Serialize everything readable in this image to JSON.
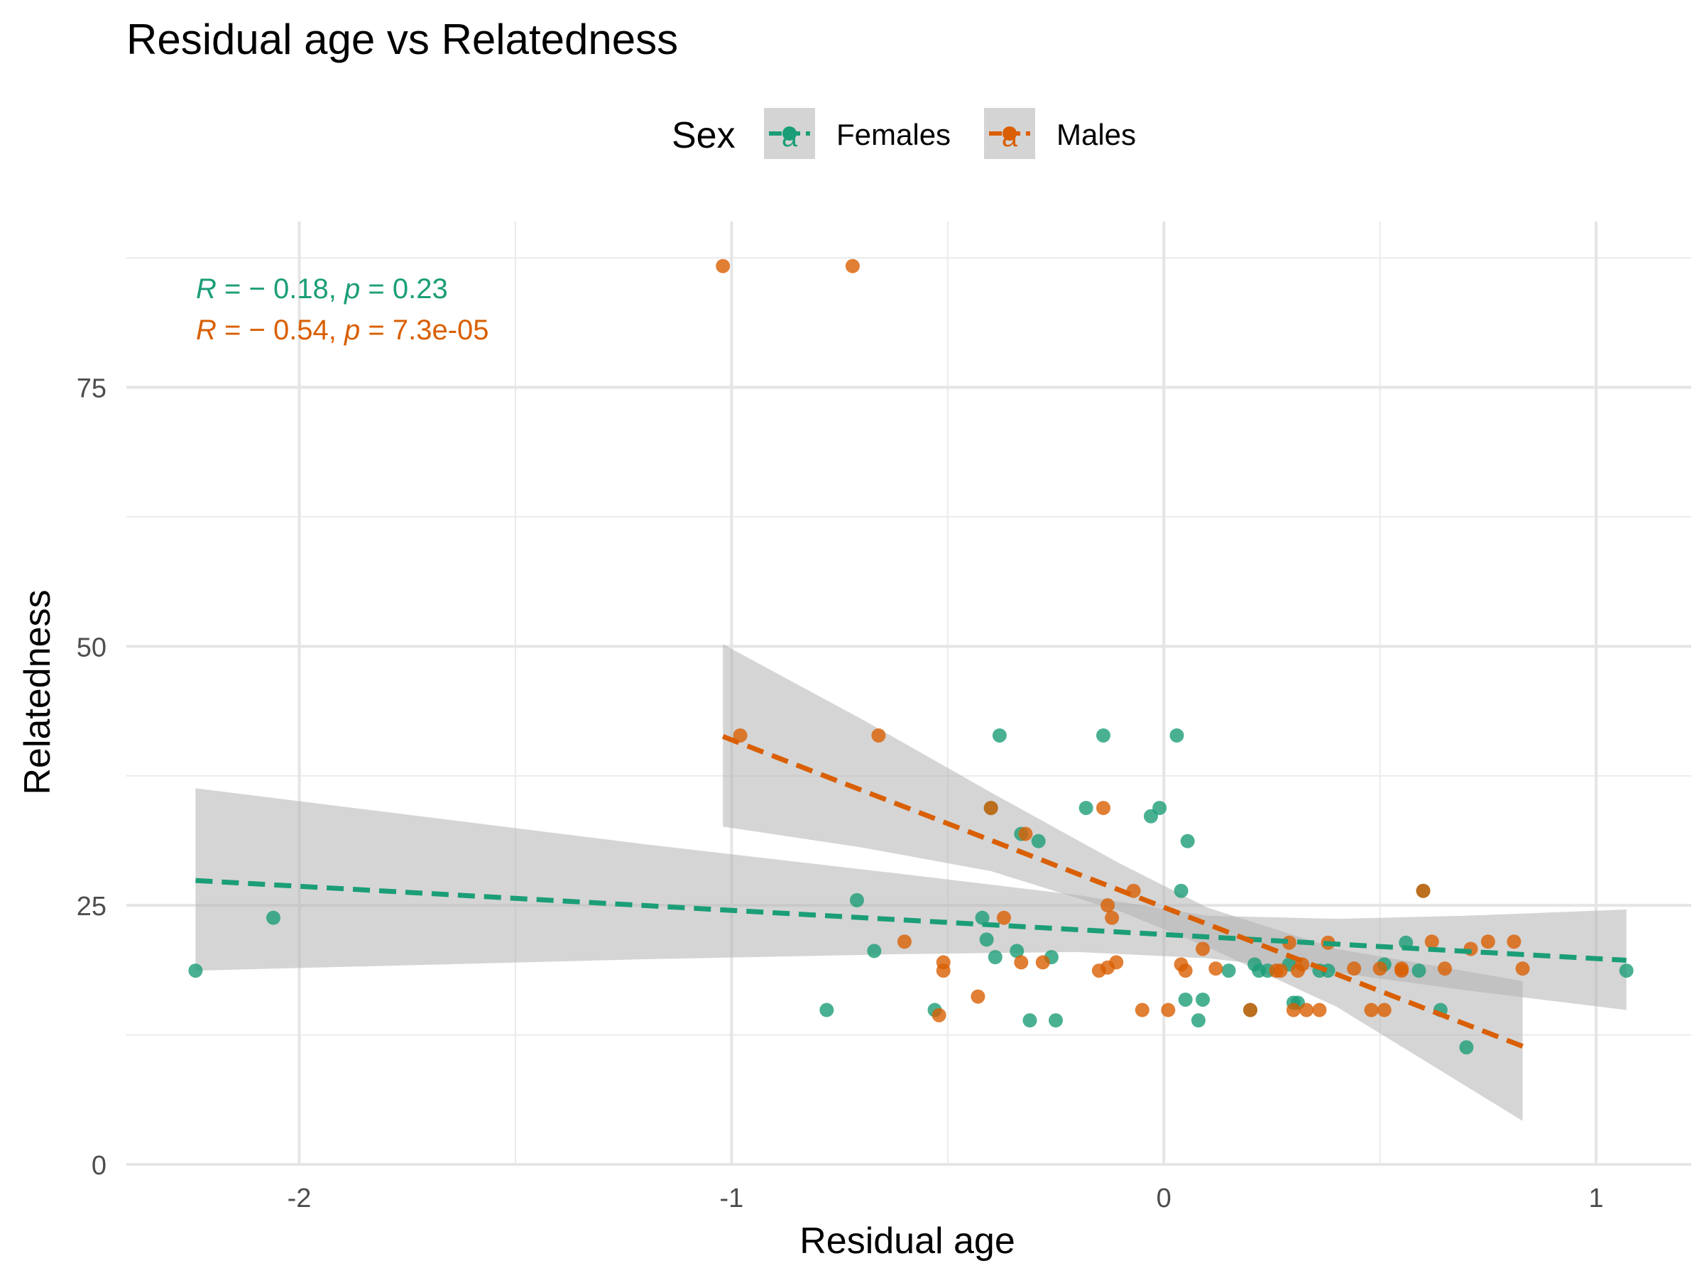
{
  "chart_data": {
    "type": "scatter",
    "title": "Residual age vs Relatedness",
    "xlabel": "Residual age",
    "ylabel": "Relatedness",
    "xlim": [
      -2.4,
      1.22
    ],
    "ylim": [
      0,
      91
    ],
    "x_ticks": [
      -2,
      -1,
      0,
      1
    ],
    "x_tick_labels": [
      "-2",
      "-1",
      "0",
      "1"
    ],
    "y_ticks": [
      0,
      25,
      50,
      75
    ],
    "y_tick_labels": [
      "0",
      "25",
      "50",
      "75"
    ],
    "grid": true,
    "legend": {
      "title": "Sex",
      "position": "top",
      "key_glyph": "a",
      "band_color": "#d4d4d4"
    },
    "colors": {
      "Females": "#1b9e77",
      "Males": "#d95f02",
      "ribbon": "#b3b3b3"
    },
    "annotations": [
      {
        "series": "Females",
        "r_label": "R",
        "r_value": " = − 0.18, ",
        "p_label": "p",
        "p_value": " = 0.23"
      },
      {
        "series": "Males",
        "r_label": "R",
        "r_value": " = − 0.54, ",
        "p_label": "p",
        "p_value": " = 7.3e-05"
      }
    ],
    "series": [
      {
        "name": "Females",
        "color": "#1b9e77",
        "points": [
          [
            -2.24,
            18.7
          ],
          [
            -2.06,
            23.8
          ],
          [
            -0.78,
            14.9
          ],
          [
            -0.71,
            25.5
          ],
          [
            -0.67,
            20.6
          ],
          [
            -0.53,
            14.9
          ],
          [
            -0.42,
            23.8
          ],
          [
            -0.41,
            21.7
          ],
          [
            -0.4,
            34.4
          ],
          [
            -0.39,
            20.0
          ],
          [
            -0.38,
            41.4
          ],
          [
            -0.34,
            20.6
          ],
          [
            -0.33,
            31.9
          ],
          [
            -0.31,
            13.9
          ],
          [
            -0.29,
            31.2
          ],
          [
            -0.26,
            20.0
          ],
          [
            -0.25,
            13.9
          ],
          [
            -0.18,
            34.4
          ],
          [
            -0.14,
            41.4
          ],
          [
            -0.03,
            33.6
          ],
          [
            -0.01,
            34.4
          ],
          [
            0.03,
            41.4
          ],
          [
            0.04,
            26.4
          ],
          [
            0.05,
            15.9
          ],
          [
            0.055,
            31.2
          ],
          [
            0.08,
            13.9
          ],
          [
            0.09,
            15.9
          ],
          [
            0.15,
            18.7
          ],
          [
            0.2,
            14.9
          ],
          [
            0.21,
            19.3
          ],
          [
            0.22,
            18.7
          ],
          [
            0.24,
            18.7
          ],
          [
            0.29,
            19.3
          ],
          [
            0.3,
            15.6
          ],
          [
            0.31,
            15.6
          ],
          [
            0.36,
            18.7
          ],
          [
            0.38,
            18.7
          ],
          [
            0.51,
            19.3
          ],
          [
            0.56,
            21.4
          ],
          [
            0.59,
            18.7
          ],
          [
            0.6,
            26.4
          ],
          [
            0.64,
            14.9
          ],
          [
            0.7,
            11.3
          ],
          [
            1.07,
            18.7
          ]
        ],
        "fit": {
          "x_start": -2.24,
          "y_start": 27.4,
          "x_end": 1.07,
          "y_end": 19.7
        },
        "ribbon_upper": [
          [
            -2.24,
            36.3
          ],
          [
            -1.2,
            30.9
          ],
          [
            -0.6,
            28.0
          ],
          [
            -0.2,
            26.0
          ],
          [
            0.1,
            24.0
          ],
          [
            0.4,
            23.7
          ],
          [
            0.7,
            24.0
          ],
          [
            1.07,
            24.6
          ]
        ],
        "ribbon_lower": [
          [
            -2.24,
            18.7
          ],
          [
            -1.2,
            19.8
          ],
          [
            -0.6,
            20.3
          ],
          [
            -0.2,
            20.5
          ],
          [
            0.1,
            19.9
          ],
          [
            0.4,
            18.5
          ],
          [
            0.7,
            16.8
          ],
          [
            1.07,
            14.9
          ]
        ]
      },
      {
        "name": "Males",
        "color": "#d95f02",
        "points": [
          [
            -1.02,
            86.7
          ],
          [
            -0.72,
            86.7
          ],
          [
            -0.98,
            41.4
          ],
          [
            -0.66,
            41.4
          ],
          [
            -0.6,
            21.5
          ],
          [
            -0.52,
            14.4
          ],
          [
            -0.51,
            19.5
          ],
          [
            -0.51,
            18.7
          ],
          [
            -0.43,
            16.2
          ],
          [
            -0.4,
            34.4
          ],
          [
            -0.37,
            23.8
          ],
          [
            -0.33,
            19.5
          ],
          [
            -0.32,
            31.9
          ],
          [
            -0.28,
            19.5
          ],
          [
            -0.15,
            18.7
          ],
          [
            -0.14,
            34.4
          ],
          [
            -0.13,
            19.0
          ],
          [
            -0.13,
            25.0
          ],
          [
            -0.12,
            23.8
          ],
          [
            -0.11,
            19.5
          ],
          [
            -0.07,
            26.4
          ],
          [
            -0.05,
            14.9
          ],
          [
            0.01,
            14.9
          ],
          [
            0.04,
            19.3
          ],
          [
            0.05,
            18.7
          ],
          [
            0.09,
            20.8
          ],
          [
            0.12,
            18.9
          ],
          [
            0.2,
            14.9
          ],
          [
            0.26,
            18.7
          ],
          [
            0.27,
            18.7
          ],
          [
            0.29,
            21.4
          ],
          [
            0.3,
            14.9
          ],
          [
            0.31,
            18.7
          ],
          [
            0.32,
            19.3
          ],
          [
            0.33,
            14.9
          ],
          [
            0.36,
            14.9
          ],
          [
            0.38,
            21.4
          ],
          [
            0.44,
            18.9
          ],
          [
            0.48,
            14.9
          ],
          [
            0.5,
            18.9
          ],
          [
            0.51,
            14.9
          ],
          [
            0.55,
            18.7
          ],
          [
            0.55,
            18.9
          ],
          [
            0.6,
            26.4
          ],
          [
            0.62,
            21.5
          ],
          [
            0.65,
            18.9
          ],
          [
            0.71,
            20.8
          ],
          [
            0.75,
            21.5
          ],
          [
            0.81,
            21.5
          ],
          [
            0.83,
            18.9
          ]
        ],
        "fit": {
          "x_start": -1.02,
          "y_start": 41.3,
          "x_end": 0.83,
          "y_end": 11.4
        },
        "ribbon_upper": [
          [
            -1.02,
            50.2
          ],
          [
            -0.7,
            43.0
          ],
          [
            -0.4,
            35.9
          ],
          [
            -0.1,
            29.0
          ],
          [
            0.1,
            24.8
          ],
          [
            0.4,
            20.8
          ],
          [
            0.83,
            17.7
          ]
        ],
        "ribbon_lower": [
          [
            -1.02,
            32.6
          ],
          [
            -0.7,
            30.6
          ],
          [
            -0.4,
            28.3
          ],
          [
            -0.1,
            24.4
          ],
          [
            0.1,
            21.0
          ],
          [
            0.4,
            15.2
          ],
          [
            0.83,
            4.2
          ]
        ]
      }
    ]
  }
}
